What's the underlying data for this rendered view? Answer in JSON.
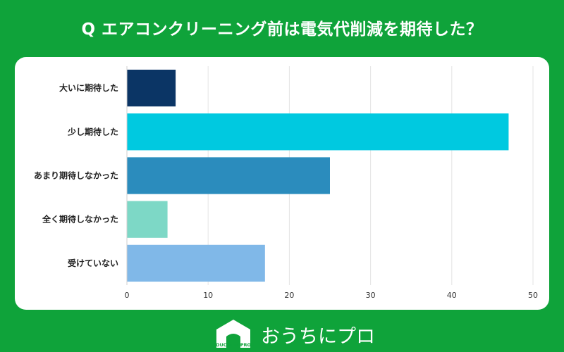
{
  "title": "Q エアコンクリーニング前は電気代削減を期待した？",
  "chart_data": {
    "type": "bar",
    "orientation": "horizontal",
    "title": "",
    "xlabel": "",
    "ylabel": "",
    "categories": [
      "大いに期待した",
      "少し期待した",
      "あまり期待しなかった",
      "全く期待しなかった",
      "受けていない"
    ],
    "values": [
      6,
      47,
      25,
      5,
      17
    ],
    "colors": [
      "#0b3565",
      "#00c9e0",
      "#2b8cbd",
      "#7dd8c6",
      "#80b8e8"
    ],
    "xlim": [
      0,
      50
    ],
    "xticks": [
      0,
      10,
      20,
      30,
      40,
      50
    ],
    "grid": true
  },
  "footer": {
    "logo_text": "OUCHI ni PRO",
    "brand": "おうちにプロ"
  }
}
